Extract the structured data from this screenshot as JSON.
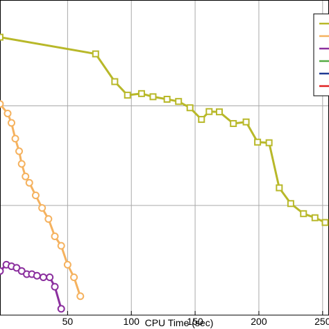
{
  "chart_data": {
    "type": "line",
    "title": "",
    "xlabel": "CPU Time (sec)",
    "ylabel": "",
    "xlim": [
      -3,
      255
    ],
    "ylim": [
      0,
      1
    ],
    "x_ticks": [
      50,
      100,
      150,
      200,
      250
    ],
    "x_tick_labels": [
      "50",
      "100",
      "150",
      "200",
      "250"
    ],
    "y_grid_fractions": [
      0.348,
      0.664
    ],
    "grid": true,
    "legend_placement": "top-right",
    "series": [
      {
        "color": "#b8b829",
        "marker": "square",
        "points": [
          [
            -3,
            0.882
          ],
          [
            72,
            0.829
          ],
          [
            87,
            0.741
          ],
          [
            97,
            0.698
          ],
          [
            108,
            0.703
          ],
          [
            117,
            0.693
          ],
          [
            128,
            0.685
          ],
          [
            137,
            0.678
          ],
          [
            146,
            0.658
          ],
          [
            155,
            0.621
          ],
          [
            161,
            0.646
          ],
          [
            169,
            0.645
          ],
          [
            180,
            0.608
          ],
          [
            190,
            0.613
          ],
          [
            199,
            0.549
          ],
          [
            208,
            0.547
          ],
          [
            216,
            0.404
          ],
          [
            225,
            0.354
          ],
          [
            235,
            0.322
          ],
          [
            244,
            0.309
          ],
          [
            252,
            0.294
          ]
        ]
      },
      {
        "color": "#f5b25f",
        "marker": "circle",
        "points": [
          [
            -3,
            0.67
          ],
          [
            3,
            0.64
          ],
          [
            6,
            0.61
          ],
          [
            9,
            0.56
          ],
          [
            12,
            0.52
          ],
          [
            14,
            0.48
          ],
          [
            17,
            0.44
          ],
          [
            20,
            0.42
          ],
          [
            25,
            0.38
          ],
          [
            30,
            0.34
          ],
          [
            35,
            0.305
          ],
          [
            40,
            0.25
          ],
          [
            45,
            0.22
          ],
          [
            50,
            0.16
          ],
          [
            55,
            0.12
          ],
          [
            60,
            0.06
          ]
        ]
      },
      {
        "color": "#8b2f9e",
        "marker": "circle",
        "points": [
          [
            -3,
            0.14
          ],
          [
            2,
            0.16
          ],
          [
            6,
            0.155
          ],
          [
            10,
            0.15
          ],
          [
            14,
            0.14
          ],
          [
            18,
            0.13
          ],
          [
            22,
            0.13
          ],
          [
            26,
            0.125
          ],
          [
            31,
            0.12
          ],
          [
            36,
            0.12
          ],
          [
            40,
            0.09
          ],
          [
            45,
            0.02
          ]
        ]
      }
    ],
    "legend_entries": [
      {
        "color": "#b8b829"
      },
      {
        "color": "#f5b25f"
      },
      {
        "color": "#8b2f9e"
      },
      {
        "color": "#55aa44"
      },
      {
        "color": "#1f3a93"
      },
      {
        "color": "#e02020"
      }
    ]
  }
}
